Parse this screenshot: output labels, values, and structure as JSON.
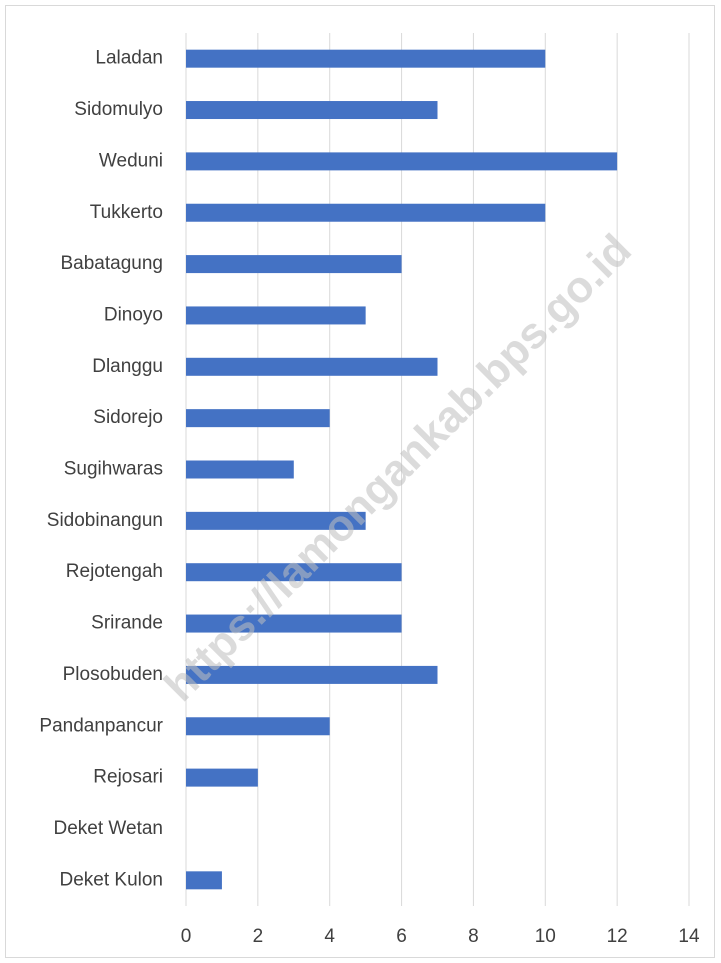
{
  "chart_data": {
    "type": "hbar",
    "categories": [
      "Laladan",
      "Sidomulyo",
      "Weduni",
      "Tukkerto",
      "Babatagung",
      "Dinoyo",
      "Dlanggu",
      "Sidorejo",
      "Sugihwaras",
      "Sidobinangun",
      "Rejotengah",
      "Srirande",
      "Plosobuden",
      "Pandanpancur",
      "Rejosari",
      "Deket Wetan",
      "Deket Kulon"
    ],
    "values": [
      10,
      7,
      12,
      10,
      6,
      5,
      7,
      4,
      3,
      5,
      6,
      6,
      7,
      4,
      2,
      0,
      1
    ],
    "color": "#4472c4",
    "xlim": [
      0,
      14
    ],
    "xticks": [
      0,
      2,
      4,
      6,
      8,
      10,
      12,
      14
    ],
    "grid": true,
    "watermark": "https://lamongankab.bps.go.id"
  }
}
